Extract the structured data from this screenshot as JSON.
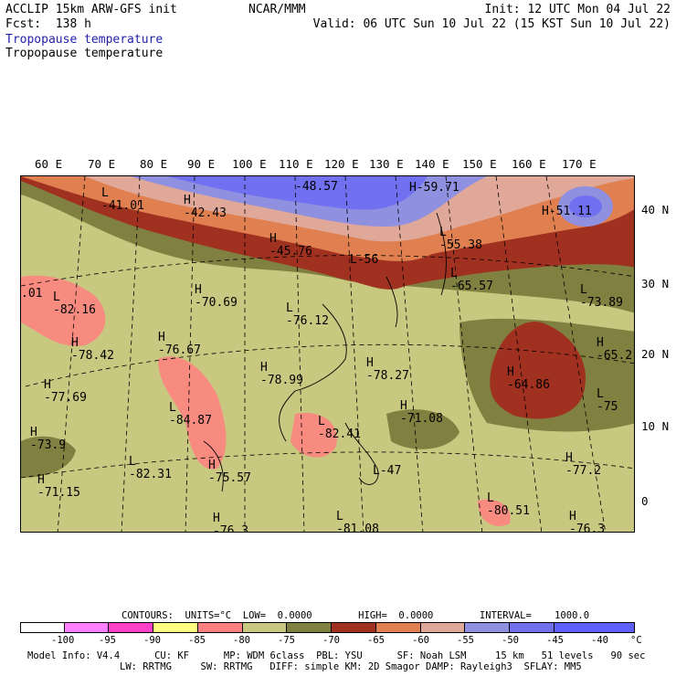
{
  "header": {
    "line1": "ACCLIP 15km ARW-GFS init",
    "line2": "Fcst:  138 h",
    "center": "NCAR/MMM",
    "init": "Init: 12 UTC Mon 04 Jul 22",
    "valid": "Valid: 06 UTC Sun 10 Jul 22 (15 KST Sun 10 Jul 22)",
    "title_colored": "Tropopause temperature",
    "title": "Tropopause temperature"
  },
  "map": {
    "longitude_labels": [
      "60 E",
      "70 E",
      "80 E",
      "90 E",
      "100 E",
      "110 E",
      "120 E",
      "130 E",
      "140 E",
      "150 E",
      "160 E",
      "170 E"
    ],
    "latitude_labels": [
      "40 N",
      "30 N",
      "20 N",
      "10 N",
      "0"
    ],
    "field_labels": [
      {
        "t": "L",
        "v": "-41.01"
      },
      {
        "t": "H",
        "v": "-42.43"
      },
      {
        "t": "",
        "v": "-48.57"
      },
      {
        "t": "H",
        "v": "-59.71"
      },
      {
        "t": "H",
        "v": "-51.11"
      },
      {
        "t": "H",
        "v": "-45.76"
      },
      {
        "t": "L",
        "v": "-56"
      },
      {
        "t": "L",
        "v": "-55.38"
      },
      {
        "t": "L",
        "v": "-65.57"
      },
      {
        "t": "L",
        "v": "-73.89"
      },
      {
        "t": "H",
        "v": ".01"
      },
      {
        "t": "L",
        "v": "-82.16"
      },
      {
        "t": "H",
        "v": "-70.69"
      },
      {
        "t": "L",
        "v": "-76.12"
      },
      {
        "t": "H",
        "v": "-78.42"
      },
      {
        "t": "H",
        "v": "-76.67"
      },
      {
        "t": "H",
        "v": "-65.2"
      },
      {
        "t": "H",
        "v": "-77.69"
      },
      {
        "t": "H",
        "v": "-78.99"
      },
      {
        "t": "H",
        "v": "-78.27"
      },
      {
        "t": "H",
        "v": "-64.86"
      },
      {
        "t": "L",
        "v": "-75"
      },
      {
        "t": "L",
        "v": "-84.87"
      },
      {
        "t": "L",
        "v": "-82.41"
      },
      {
        "t": "H",
        "v": "-71.08"
      },
      {
        "t": "H",
        "v": "-73.9"
      },
      {
        "t": "L",
        "v": "-82.31"
      },
      {
        "t": "H",
        "v": "-75.57"
      },
      {
        "t": "L",
        "v": "-47"
      },
      {
        "t": "H",
        "v": "-77.2"
      },
      {
        "t": "H",
        "v": "-71.15"
      },
      {
        "t": "L",
        "v": "-80.51"
      },
      {
        "t": "H",
        "v": "-76.3"
      },
      {
        "t": "L",
        "v": "-81.08"
      },
      {
        "t": "H",
        "v": "-76.3"
      }
    ]
  },
  "legend": {
    "contours_text": "CONTOURS:  UNITS=°C  LOW=  0.0000        HIGH=  0.0000        INTERVAL=    1000.0",
    "tick_labels": [
      "-100",
      "-95",
      "-90",
      "-85",
      "-80",
      "-75",
      "-70",
      "-65",
      "-60",
      "-55",
      "-50",
      "-45",
      "-40",
      "°C"
    ],
    "colors": [
      "#ffffff",
      "#ff80ff",
      "#ff40c8",
      "#ffff80",
      "#ff8080",
      "#c8c880",
      "#808040",
      "#a03020",
      "#e08050",
      "#e0a898",
      "#9090e0",
      "#7070f0",
      "#6060ff"
    ]
  },
  "model_info": {
    "line1": "Model Info: V4.4      CU: KF      MP: WDM 6class  PBL: YSU      SF: Noah LSM     15 km   51 levels   90 sec",
    "line2": "LW: RRTMG     SW: RRTMG   DIFF: simple KM: 2D Smagor DAMP: Rayleigh3  SFLAY: MM5"
  }
}
